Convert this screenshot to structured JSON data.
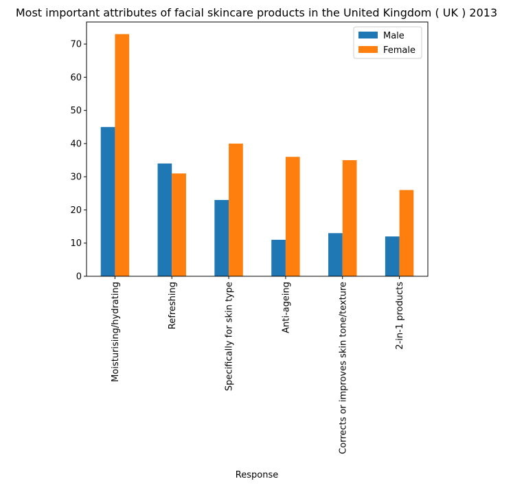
{
  "chart_data": {
    "type": "bar",
    "title": "Most important attributes of facial skincare products in the United Kingdom ( UK ) 2013",
    "xlabel": "Response",
    "ylabel": "",
    "categories": [
      "Moisturising/hydrating",
      "Refreshing",
      "Specifically for skin type",
      "Anti-ageing",
      "Corrects or improves skin tone/texture",
      "2-in-1 products"
    ],
    "series": [
      {
        "name": "Male",
        "color": "#1f77b4",
        "values": [
          45,
          34,
          23,
          11,
          13,
          12
        ]
      },
      {
        "name": "Female",
        "color": "#ff7f0e",
        "values": [
          73,
          31,
          40,
          36,
          35,
          26
        ]
      }
    ],
    "ylim": [
      0,
      76.65
    ],
    "yticks": [
      0,
      10,
      20,
      30,
      40,
      50,
      60,
      70
    ],
    "grid": false,
    "legend_position": "top-right"
  }
}
